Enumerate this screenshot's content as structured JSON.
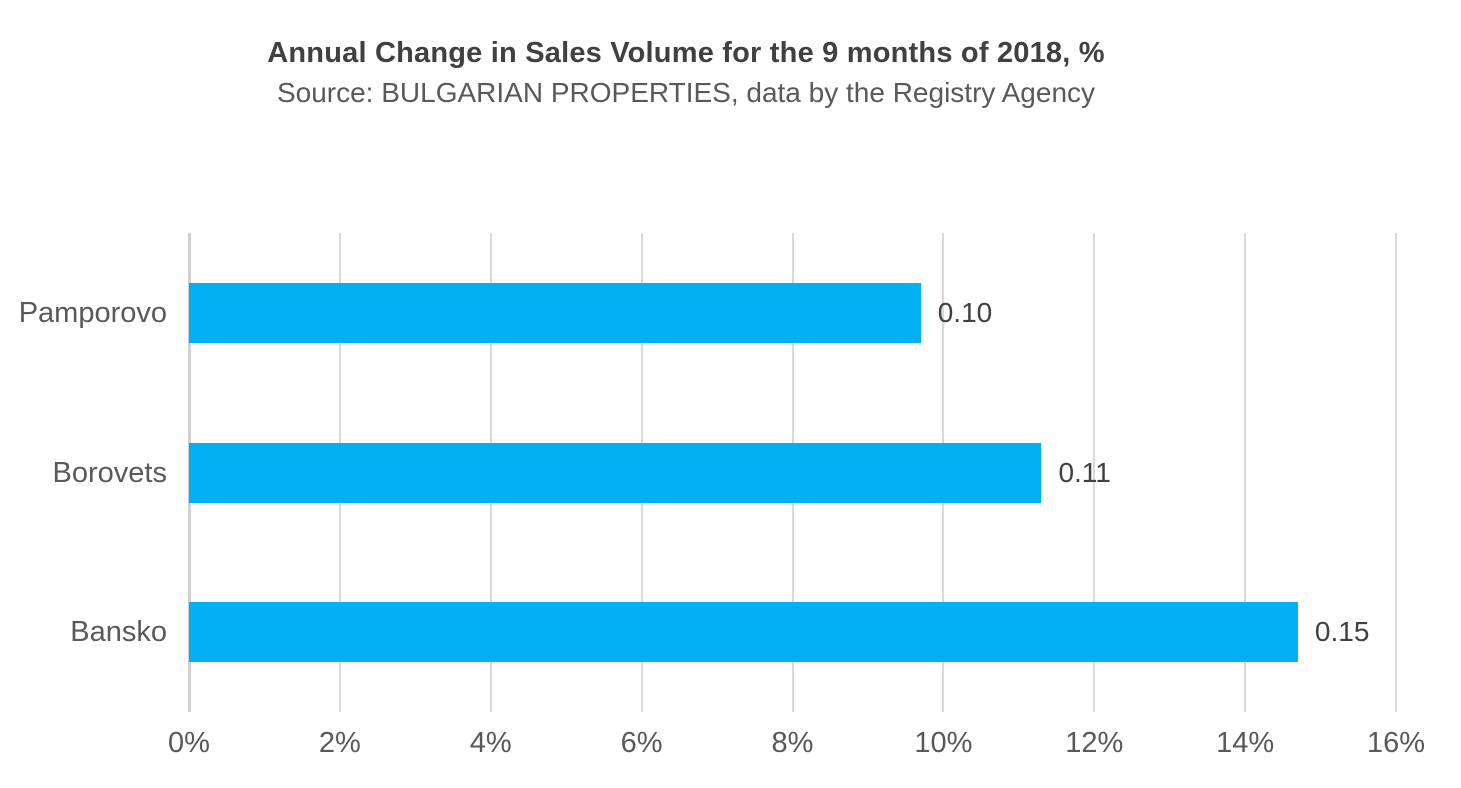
{
  "page": {
    "background": "#ffffff"
  },
  "header": {
    "title": "Annual Change in Sales Volume for the 9 months of 2018, %",
    "subtitle": "Source: BULGARIAN PROPERTIES, data by the Registry Agency"
  },
  "colors": {
    "bar": "#00b0f0",
    "gridline": "#d9d9d9",
    "zero_axis_line": "#d0d0d0",
    "title_text": "#404040",
    "subtitle_text": "#595959",
    "category_text": "#595959",
    "tick_text": "#595959",
    "data_label_text": "#404040"
  },
  "chart_data": {
    "type": "bar",
    "orientation": "horizontal",
    "title": "Annual Change in Sales Volume for the 9 months of 2018, %",
    "subtitle": "Source: BULGARIAN PROPERTIES, data by the Registry Agency",
    "categories": [
      "Pamporovo",
      "Borovets",
      "Bansko"
    ],
    "values_percent": [
      9.7,
      11.3,
      14.7
    ],
    "data_labels": [
      "0.10",
      "0.11",
      "0.15"
    ],
    "xlabel": "",
    "ylabel": "",
    "xlim": [
      0,
      16
    ],
    "x_tick_step": 2,
    "x_tick_labels": [
      "0%",
      "2%",
      "4%",
      "6%",
      "8%",
      "10%",
      "12%",
      "14%",
      "16%"
    ],
    "grid": "vertical-only",
    "legend": "none"
  }
}
